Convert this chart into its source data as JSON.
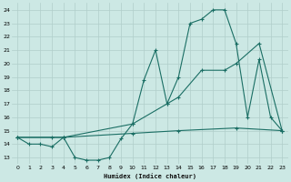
{
  "xlabel": "Humidex (Indice chaleur)",
  "bg_color": "#cce8e4",
  "grid_color": "#b0ceca",
  "line_color": "#1a6e64",
  "xlim": [
    -0.5,
    23.5
  ],
  "ylim": [
    12.5,
    24.5
  ],
  "yticks": [
    13,
    14,
    15,
    16,
    17,
    18,
    19,
    20,
    21,
    22,
    23,
    24
  ],
  "xticks": [
    0,
    1,
    2,
    3,
    4,
    5,
    6,
    7,
    8,
    9,
    10,
    11,
    12,
    13,
    14,
    15,
    16,
    17,
    18,
    19,
    20,
    21,
    22,
    23
  ],
  "line1_x": [
    0,
    1,
    2,
    3,
    4,
    5,
    6,
    7,
    8,
    9,
    10,
    11,
    12,
    13,
    14,
    15,
    16,
    17,
    18,
    19,
    20,
    21,
    22,
    23
  ],
  "line1_y": [
    14.5,
    14.0,
    14.0,
    13.8,
    14.5,
    13.0,
    12.8,
    12.8,
    13.0,
    14.4,
    15.5,
    18.8,
    21.0,
    17.0,
    19.0,
    23.0,
    23.3,
    24.0,
    24.0,
    21.5,
    16.0,
    20.3,
    16.0,
    15.0
  ],
  "line2_x": [
    0,
    3,
    4,
    10,
    13,
    14,
    16,
    18,
    19,
    21,
    23
  ],
  "line2_y": [
    14.5,
    14.5,
    14.5,
    15.5,
    17.0,
    17.5,
    19.5,
    19.5,
    20.0,
    21.5,
    15.0
  ],
  "line3_x": [
    0,
    4,
    10,
    14,
    19,
    23
  ],
  "line3_y": [
    14.5,
    14.5,
    14.8,
    15.0,
    15.2,
    15.0
  ]
}
